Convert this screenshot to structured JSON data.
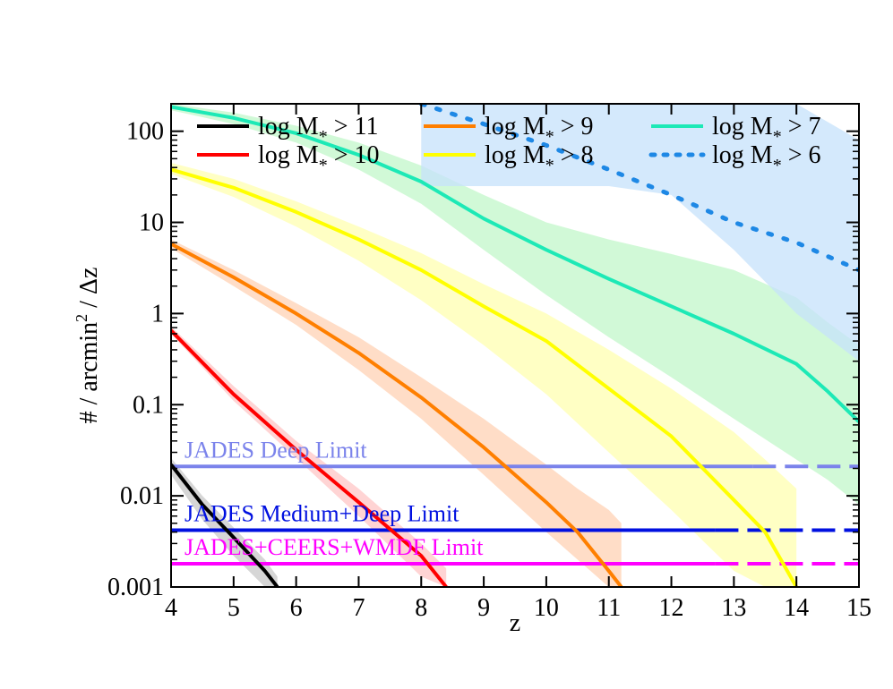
{
  "chart_data": {
    "type": "line",
    "xlabel": "z",
    "ylabel": "# / arcmin",
    "ylabel_sup": "2",
    "ylabel_tail": " / Δz",
    "xlim": [
      4,
      15
    ],
    "ylim": [
      0.001,
      200
    ],
    "yscale": "log",
    "xticks": [
      4,
      5,
      6,
      7,
      8,
      9,
      10,
      11,
      12,
      13,
      14,
      15
    ],
    "yticks": [
      {
        "value": 0.001,
        "label": "0.001"
      },
      {
        "value": 0.01,
        "label": "0.01"
      },
      {
        "value": 0.1,
        "label": "0.1"
      },
      {
        "value": 1,
        "label": "1"
      },
      {
        "value": 10,
        "label": "10"
      },
      {
        "value": 100,
        "label": "100"
      }
    ],
    "grid": false,
    "legend_position": "top",
    "series": [
      {
        "name": "log M",
        "name_sub": "*",
        "name_tail": " > 11",
        "color": "#000000",
        "band_color": "#c8c8c8",
        "dash": "solid",
        "x": [
          4.0,
          4.5,
          5.0,
          5.5,
          5.7
        ],
        "y": [
          0.022,
          0.008,
          0.0035,
          0.0015,
          0.001
        ],
        "band_low": [
          0.017,
          0.0055,
          0.0022,
          0.001,
          0.001
        ],
        "band_high": [
          0.026,
          0.01,
          0.0045,
          0.002,
          0.0013
        ]
      },
      {
        "name": "log M",
        "name_sub": "*",
        "name_tail": " > 10",
        "color": "#ff0000",
        "band_color": "#ffc6c6",
        "dash": "solid",
        "x": [
          4.0,
          5.0,
          6.0,
          7.0,
          8.0,
          8.4
        ],
        "y": [
          0.65,
          0.13,
          0.032,
          0.0085,
          0.0022,
          0.001
        ],
        "band_low": [
          0.6,
          0.11,
          0.026,
          0.006,
          0.0013,
          0.001
        ],
        "band_high": [
          0.72,
          0.16,
          0.04,
          0.012,
          0.003,
          0.0016
        ]
      },
      {
        "name": "log M",
        "name_sub": "*",
        "name_tail": " > 9",
        "color": "#ff7f00",
        "band_color": "#ffd2b4",
        "dash": "solid",
        "x": [
          4.0,
          5.0,
          6.0,
          7.0,
          8.0,
          9.0,
          10.0,
          10.5,
          11.0,
          11.2
        ],
        "y": [
          5.8,
          2.5,
          1.0,
          0.37,
          0.12,
          0.034,
          0.0085,
          0.004,
          0.0015,
          0.001
        ],
        "band_low": [
          5.2,
          2.0,
          0.75,
          0.24,
          0.07,
          0.017,
          0.004,
          0.002,
          0.001,
          0.001
        ],
        "band_high": [
          6.5,
          3.0,
          1.3,
          0.55,
          0.2,
          0.07,
          0.022,
          0.012,
          0.007,
          0.005
        ]
      },
      {
        "name": "log M",
        "name_sub": "*",
        "name_tail": " > 8",
        "color": "#ffff00",
        "band_color": "#ffffb0",
        "dash": "solid",
        "x": [
          4.0,
          5.0,
          6.0,
          7.0,
          8.0,
          9.0,
          10.0,
          11.0,
          12.0,
          13.0,
          13.5,
          14.0
        ],
        "y": [
          38,
          24,
          13,
          6.5,
          3.0,
          1.2,
          0.5,
          0.15,
          0.045,
          0.009,
          0.004,
          0.001
        ],
        "band_low": [
          34,
          19,
          9,
          3.8,
          1.4,
          0.45,
          0.13,
          0.03,
          0.007,
          0.0015,
          0.001,
          0.001
        ],
        "band_high": [
          45,
          30,
          17,
          9,
          4.6,
          2.1,
          1.0,
          0.4,
          0.15,
          0.05,
          0.025,
          0.012
        ]
      },
      {
        "name": "log M",
        "name_sub": "*",
        "name_tail": " > 7",
        "color": "#1de9b6",
        "band_color": "#c2f7c9",
        "dash": "solid",
        "x": [
          4.0,
          5.0,
          6.0,
          7.0,
          8.0,
          9.0,
          10.0,
          11.0,
          12.0,
          13.0,
          14.0,
          14.5,
          15.0
        ],
        "y": [
          185,
          140,
          95,
          55,
          28,
          11,
          5.0,
          2.4,
          1.2,
          0.6,
          0.28,
          0.14,
          0.065
        ],
        "band_low": [
          170,
          120,
          75,
          38,
          16,
          5.0,
          1.6,
          0.55,
          0.2,
          0.07,
          0.025,
          0.015,
          0.008
        ],
        "band_high": [
          200,
          160,
          115,
          75,
          42,
          20,
          10,
          6.5,
          4.5,
          3.0,
          1.5,
          0.8,
          0.45
        ]
      },
      {
        "name": "log M",
        "name_sub": "*",
        "name_tail": " > 6",
        "color": "#1e88e5",
        "band_color": "#c6e2fb",
        "dash": "dotted",
        "x": [
          8.0,
          9.0,
          10.0,
          11.0,
          12.0,
          13.0,
          14.0,
          15.0
        ],
        "y": [
          200,
          120,
          70,
          38,
          20,
          10,
          6.0,
          3.0
        ],
        "band_low": [
          25,
          25,
          25,
          25,
          20,
          5.0,
          1.0,
          0.3
        ],
        "band_high": [
          200,
          200,
          200,
          200,
          200,
          200,
          200,
          80
        ]
      }
    ],
    "limits": [
      {
        "label": "JADES Deep Limit",
        "value": 0.021,
        "color": "#7b83eb",
        "solid_until": 13.3
      },
      {
        "label": "JADES Medium+Deep Limit",
        "value": 0.0042,
        "color": "#0010e0",
        "solid_until": 12.7
      },
      {
        "label": "JADES+CEERS+WMDF Limit",
        "value": 0.0018,
        "color": "#ff00ff",
        "solid_until": 12.7
      }
    ]
  }
}
